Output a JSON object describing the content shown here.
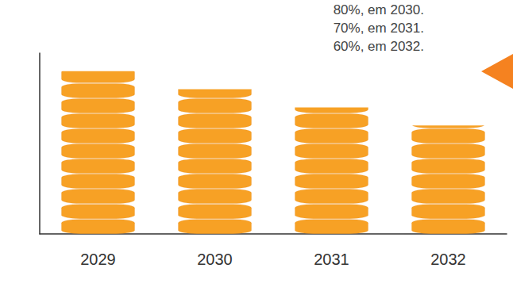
{
  "chart_data": {
    "type": "bar",
    "annotations": [
      "80%, em 2030.",
      "70%, em 2031.",
      "60%, em 2032."
    ],
    "categories": [
      "2029",
      "2030",
      "2031",
      "2032"
    ],
    "values": [
      90,
      80,
      70,
      60
    ],
    "color": "#f7a125",
    "ylim": [
      0,
      100
    ],
    "tick_labels": "x",
    "grid": false
  }
}
